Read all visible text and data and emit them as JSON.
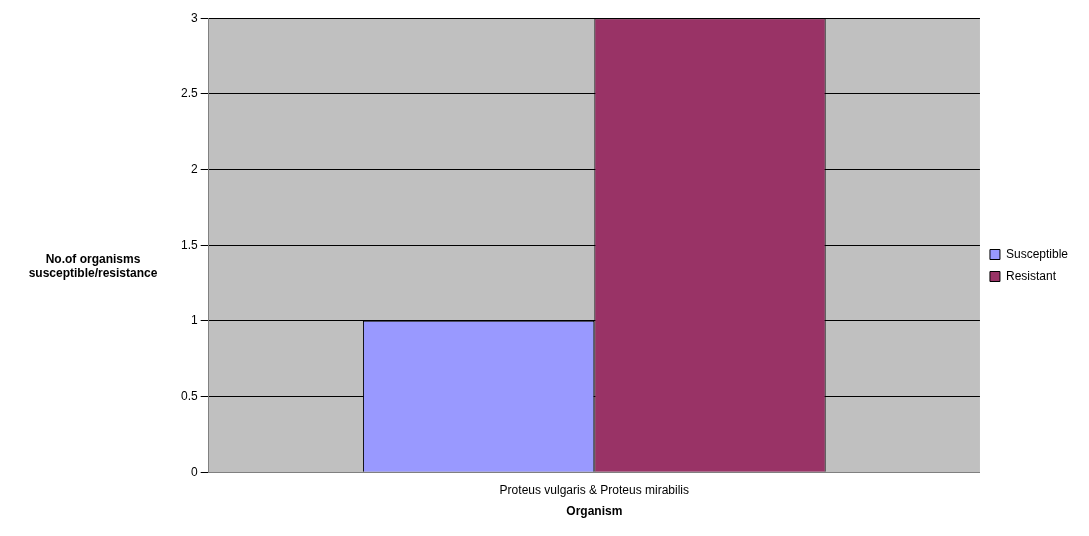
{
  "chart_data": {
    "type": "bar",
    "xlabel": "Organism",
    "ylabel": "No.of organisms susceptible/resistance",
    "categories": [
      "Proteus vulgaris & Proteus mirabilis"
    ],
    "series": [
      {
        "name": "Susceptible",
        "color": "#9999ff",
        "values": [
          1
        ]
      },
      {
        "name": "Resistant",
        "color": "#993366",
        "values": [
          3
        ]
      }
    ],
    "ylim": [
      0,
      3
    ],
    "yticks": [
      0,
      0.5,
      1,
      1.5,
      2,
      2.5,
      3
    ],
    "grid": "y",
    "legend": "right"
  }
}
